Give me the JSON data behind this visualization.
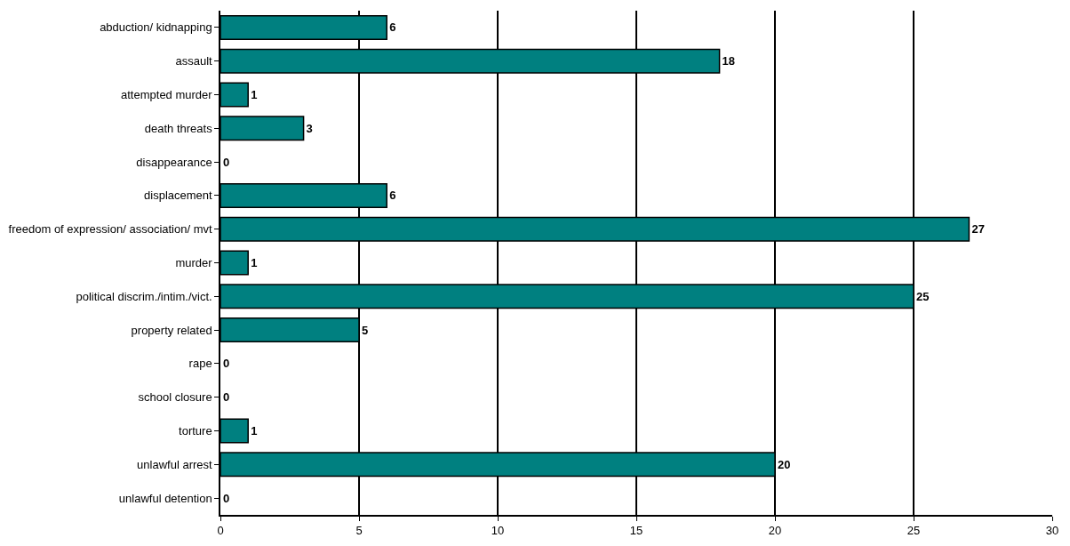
{
  "chart_data": {
    "type": "bar",
    "orientation": "horizontal",
    "categories": [
      "abduction/ kidnapping",
      "assault",
      "attempted murder",
      "death threats",
      "disappearance",
      "displacement",
      "freedom of expression/ association/ mvt",
      "murder",
      "political discrim./intim./vict.",
      "property related",
      "rape",
      "school closure",
      "torture",
      "unlawful arrest",
      "unlawful detention"
    ],
    "values": [
      6,
      18,
      1,
      3,
      0,
      6,
      27,
      1,
      25,
      5,
      0,
      0,
      1,
      20,
      0
    ],
    "color": "#008080",
    "xlim": [
      0,
      30
    ],
    "xticks": [
      0,
      5,
      10,
      15,
      20,
      25,
      30
    ],
    "grid": "x",
    "data_labels": true,
    "legend": false
  }
}
